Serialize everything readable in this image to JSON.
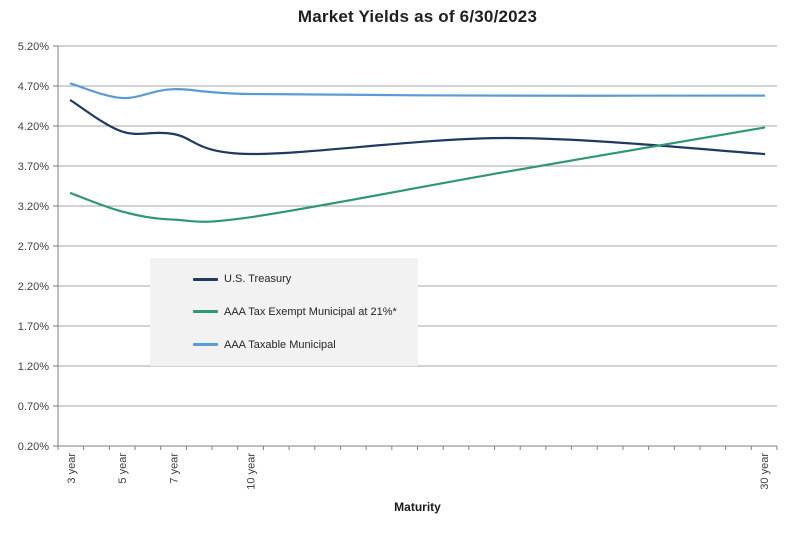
{
  "title": "Market Yields as of 6/30/2023",
  "colors": {
    "background": "#FFFFFF",
    "gridline": "#A6A6A6",
    "axis": "#7F7F7F",
    "tick_label": "#404040",
    "title_text": "#1F1F1F",
    "legend_background": "#F2F2F2",
    "treasury_line": "#1F3864",
    "tax_exempt_line": "#2E9970",
    "taxable_line": "#5B9BD5"
  },
  "chart_data": {
    "type": "line",
    "title": "Market Yields as of 6/30/2023",
    "xlabel": "Maturity",
    "ylabel": "",
    "line_style": "smooth",
    "grid": "horizontal",
    "legend_position": "inside-left-middle",
    "x_unit": "years to maturity",
    "x": [
      3,
      5,
      7,
      10,
      20,
      30
    ],
    "series": [
      {
        "name": "U.S. Treasury",
        "color": "#1F3864",
        "values": [
          4.52,
          4.13,
          4.1,
          3.85,
          4.05,
          3.85
        ]
      },
      {
        "name": "AAA Tax Exempt Municipal at 21%*",
        "color": "#2E9970",
        "values": [
          3.36,
          3.13,
          3.03,
          3.06,
          3.63,
          4.18
        ]
      },
      {
        "name": "AAA Taxable Municipal",
        "color": "#5B9BD5",
        "values": [
          4.73,
          4.55,
          4.66,
          4.6,
          4.58,
          4.58
        ]
      }
    ],
    "xticks": [
      {
        "value": 3,
        "label": "3 year"
      },
      {
        "value": 5,
        "label": "5 year"
      },
      {
        "value": 7,
        "label": "7 year"
      },
      {
        "value": 10,
        "label": "10 year"
      },
      {
        "value": 30,
        "label": "30 year"
      }
    ],
    "yticks": [
      {
        "value": 5.2,
        "label": "5.20%"
      },
      {
        "value": 4.7,
        "label": "4.70%"
      },
      {
        "value": 4.2,
        "label": "4.20%"
      },
      {
        "value": 3.7,
        "label": "3.70%"
      },
      {
        "value": 3.2,
        "label": "3.20%"
      },
      {
        "value": 2.7,
        "label": "2.70%"
      },
      {
        "value": 2.2,
        "label": "2.20%"
      },
      {
        "value": 1.7,
        "label": "1.70%"
      },
      {
        "value": 1.2,
        "label": "1.20%"
      },
      {
        "value": 0.7,
        "label": "0.70%"
      },
      {
        "value": 0.2,
        "label": "0.20%"
      }
    ],
    "xlim": [
      2.5,
      30.5
    ],
    "ylim": [
      0.2,
      5.2
    ],
    "x_minor_tick_step": 1
  }
}
